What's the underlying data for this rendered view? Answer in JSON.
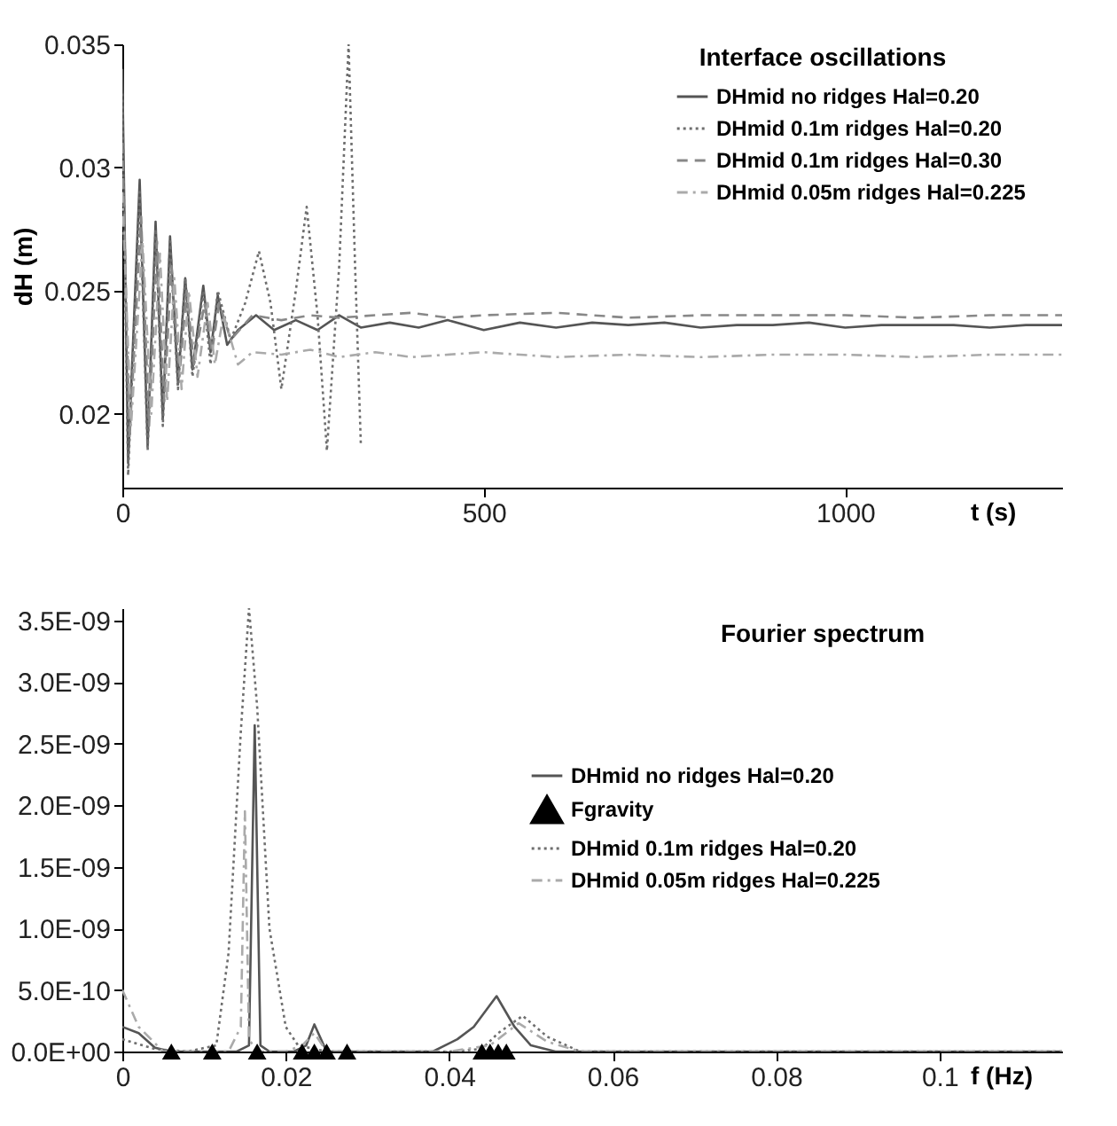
{
  "chart_data": [
    {
      "type": "line",
      "title": "Interface oscillations",
      "xlabel": "t (s)",
      "ylabel": "dH (m)",
      "xlim": [
        0,
        1300
      ],
      "xticks": [
        0,
        500,
        1000
      ],
      "ylim": [
        0.017,
        0.035
      ],
      "yticks": [
        0.02,
        0.025,
        0.03,
        0.035
      ],
      "grid": false,
      "legend": "top right",
      "series": [
        {
          "name": "DHmid no ridges Hal=0.20",
          "color": "#555555",
          "line_style": "solid",
          "x": [
            0,
            8,
            24,
            35,
            46,
            56,
            66,
            77,
            87,
            97,
            112,
            122,
            132,
            145,
            160,
            185,
            210,
            240,
            270,
            300,
            330,
            370,
            410,
            450,
            500,
            550,
            600,
            650,
            700,
            750,
            800,
            850,
            900,
            950,
            1000,
            1050,
            1100,
            1150,
            1200,
            1250,
            1300
          ],
          "values": [
            0.034,
            0.018,
            0.0295,
            0.0187,
            0.0278,
            0.0198,
            0.0272,
            0.0212,
            0.0255,
            0.0218,
            0.0252,
            0.0225,
            0.0248,
            0.0228,
            0.0234,
            0.024,
            0.0234,
            0.0238,
            0.0234,
            0.024,
            0.0235,
            0.0237,
            0.0235,
            0.0238,
            0.0234,
            0.0237,
            0.0235,
            0.0237,
            0.0236,
            0.0237,
            0.0235,
            0.0236,
            0.0236,
            0.0237,
            0.0235,
            0.0236,
            0.0236,
            0.0236,
            0.0235,
            0.0236,
            0.0236
          ]
        },
        {
          "name": "DHmid 0.1m ridges Hal=0.20",
          "color": "#6e6e6e",
          "line_style": "dotted",
          "x": [
            0,
            8,
            24,
            35,
            46,
            56,
            66,
            77,
            87,
            97,
            112,
            122,
            132,
            150,
            170,
            189,
            205,
            220,
            240,
            255,
            270,
            283,
            300,
            313,
            322,
            330
          ],
          "values": [
            0.033,
            0.0175,
            0.029,
            0.0185,
            0.0275,
            0.0195,
            0.027,
            0.021,
            0.0255,
            0.0215,
            0.025,
            0.022,
            0.025,
            0.023,
            0.0245,
            0.0266,
            0.0245,
            0.021,
            0.025,
            0.0284,
            0.024,
            0.0185,
            0.026,
            0.035,
            0.026,
            0.0187
          ]
        },
        {
          "name": "DHmid 0.1m ridges Hal=0.30",
          "color": "#888888",
          "line_style": "dashed",
          "x": [
            0,
            10,
            26,
            37,
            48,
            58,
            68,
            79,
            89,
            99,
            114,
            124,
            134,
            150,
            180,
            220,
            260,
            300,
            350,
            400,
            450,
            500,
            600,
            700,
            800,
            900,
            1000,
            1100,
            1200,
            1300
          ],
          "values": [
            0.031,
            0.019,
            0.028,
            0.0195,
            0.027,
            0.0205,
            0.026,
            0.0215,
            0.025,
            0.022,
            0.0245,
            0.0225,
            0.0245,
            0.023,
            0.024,
            0.0238,
            0.024,
            0.0239,
            0.024,
            0.0241,
            0.0239,
            0.024,
            0.0241,
            0.0239,
            0.024,
            0.024,
            0.024,
            0.0239,
            0.024,
            0.024
          ]
        },
        {
          "name": "DHmid 0.05m ridges Hal=0.225",
          "color": "#aaaaaa",
          "line_style": "dashdot",
          "x": [
            0,
            12,
            28,
            40,
            52,
            62,
            72,
            82,
            92,
            104,
            118,
            128,
            140,
            160,
            180,
            220,
            260,
            300,
            350,
            400,
            500,
            600,
            700,
            800,
            900,
            1000,
            1100,
            1200,
            1300
          ],
          "values": [
            0.029,
            0.0195,
            0.027,
            0.02,
            0.0265,
            0.0205,
            0.0255,
            0.021,
            0.025,
            0.0215,
            0.0245,
            0.022,
            0.024,
            0.022,
            0.0225,
            0.0224,
            0.0226,
            0.0223,
            0.0225,
            0.0223,
            0.0225,
            0.0223,
            0.0224,
            0.0223,
            0.0224,
            0.0224,
            0.0223,
            0.0224,
            0.0224
          ]
        }
      ]
    },
    {
      "type": "line",
      "title": "Fourier spectrum",
      "xlabel": "f (Hz)",
      "xlim": [
        0,
        0.115
      ],
      "xticks": [
        0,
        0.02,
        0.04,
        0.06,
        0.08,
        0.1
      ],
      "ylim": [
        0,
        3.6e-09
      ],
      "yticks": [
        {
          "value": 0,
          "label": "0.0E+00"
        },
        {
          "value": 5e-10,
          "label": "5.0E-10"
        },
        {
          "value": 1e-09,
          "label": "1.0E-09"
        },
        {
          "value": 1.5e-09,
          "label": "1.5E-09"
        },
        {
          "value": 2e-09,
          "label": "2.0E-09"
        },
        {
          "value": 2.5e-09,
          "label": "2.5E-09"
        },
        {
          "value": 3e-09,
          "label": "3.0E-09"
        },
        {
          "value": 3.5e-09,
          "label": "3.5E-09"
        }
      ],
      "grid": false,
      "legend": "right",
      "series": [
        {
          "name": "DHmid no ridges Hal=0.20",
          "color": "#555555",
          "line_style": "solid",
          "x": [
            0,
            0.002,
            0.004,
            0.006,
            0.01,
            0.014,
            0.0155,
            0.0162,
            0.0169,
            0.018,
            0.021,
            0.0225,
            0.0235,
            0.025,
            0.03,
            0.038,
            0.041,
            0.043,
            0.0458,
            0.048,
            0.05,
            0.053,
            0.06,
            0.08,
            0.1,
            0.115
          ],
          "values": [
            2e-10,
            1.5e-10,
            3e-11,
            0,
            0,
            0,
            5e-11,
            2.65e-09,
            5e-11,
            0,
            0,
            5e-11,
            2.2e-10,
            0,
            0,
            0,
            1e-10,
            2e-10,
            4.5e-10,
            2e-10,
            5e-11,
            0,
            0,
            0,
            0,
            0
          ]
        },
        {
          "name": "Fgravity",
          "type": "scatter",
          "color": "#000000",
          "marker": "triangle",
          "x": [
            0.006,
            0.011,
            0.0165,
            0.022,
            0.0235,
            0.025,
            0.0275,
            0.044,
            0.045,
            0.046,
            0.047
          ],
          "values": [
            0,
            0,
            0,
            0,
            0,
            0,
            0,
            0,
            0,
            0,
            0
          ]
        },
        {
          "name": "DHmid 0.1m ridges Hal=0.20",
          "color": "#6e6e6e",
          "line_style": "dotted",
          "x": [
            0,
            0.004,
            0.008,
            0.0115,
            0.013,
            0.0145,
            0.0155,
            0.0165,
            0.018,
            0.02,
            0.0215,
            0.025,
            0.04,
            0.044,
            0.046,
            0.049,
            0.052,
            0.056,
            0.06,
            0.115
          ],
          "values": [
            1e-10,
            2e-11,
            0,
            5e-11,
            8e-10,
            2.6e-09,
            3.6e-09,
            2.8e-09,
            1e-09,
            2e-10,
            5e-11,
            0,
            0,
            2e-11,
            1.5e-10,
            2.9e-10,
            1.2e-10,
            0,
            0,
            0
          ]
        },
        {
          "name": "DHmid 0.05m ridges Hal=0.225",
          "color": "#aaaaaa",
          "line_style": "dashdot",
          "x": [
            0,
            0.002,
            0.005,
            0.013,
            0.0145,
            0.015,
            0.0155,
            0.0165,
            0.02,
            0.022,
            0.0235,
            0.025,
            0.04,
            0.045,
            0.0485,
            0.052,
            0.056,
            0.115
          ],
          "values": [
            5e-10,
            2e-10,
            0,
            0,
            2e-10,
            1.95e-09,
            1e-10,
            0,
            0,
            5e-11,
            1.5e-10,
            0,
            0,
            5e-11,
            2.3e-10,
            8e-11,
            0,
            0
          ]
        }
      ]
    }
  ]
}
